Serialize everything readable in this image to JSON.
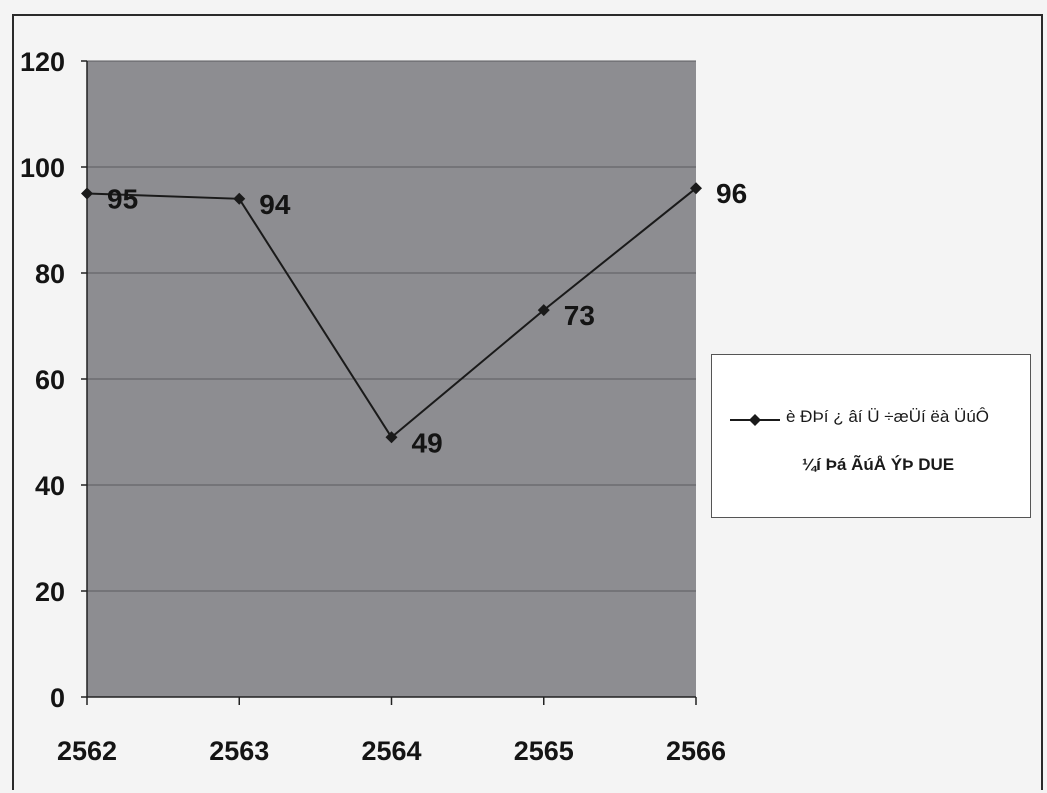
{
  "chart_data": {
    "type": "line",
    "categories": [
      "2562",
      "2563",
      "2564",
      "2565",
      "2566"
    ],
    "series": [
      {
        "name": "è ÐÞí ¿ âí Ü ÷æÜí ëà ÜúÔ ¼í Þá ÃúÅ ÝÞ DUE",
        "values": [
          95,
          94,
          49,
          73,
          96
        ]
      }
    ],
    "data_labels": [
      "95",
      "94",
      "49",
      "73",
      "96"
    ],
    "y_ticks": [
      "0",
      "20",
      "40",
      "60",
      "80",
      "100",
      "120"
    ],
    "ylim": [
      0,
      120
    ],
    "grid": true,
    "legend_position": "right",
    "legend_lines": [
      "è ÐÞí ¿ âí Ü ÷æÜí ëà ÜúÔ",
      "¼í Þá ÃúÅ ÝÞ DUE"
    ],
    "title": "",
    "xlabel": "",
    "ylabel": "",
    "colors": {
      "plot_area": "#8d8d91",
      "line": "#1a1a1a",
      "gridline": "#5a5a5e",
      "background": "#f4f4f4"
    }
  }
}
